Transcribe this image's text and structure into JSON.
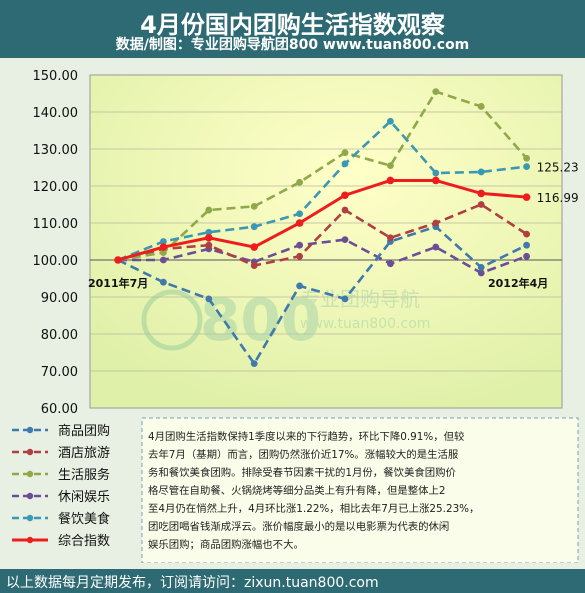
{
  "header": {
    "title": "4月份国内团购生活指数观察",
    "source": "数据/制图：专业团购导航团800    www.tuan800.com"
  },
  "watermark": {
    "logo_text": "800",
    "cn_text": "专业团购导航",
    "url_text": "www.tuan800.com"
  },
  "note": {
    "lines": [
      "4月团购生活指数保持1季度以来的下行趋势，环比下降0.91%，但较",
      "去年7月（基期）而言，团购仍然涨价近17%。涨幅较大的是生活服",
      "务和餐饮美食团购。排除受春节因素干扰的1月份，餐饮美食团购价",
      "格尽管在自助餐、火锅烧烤等细分品类上有升有降，但是整体上2",
      "至4月仍在悄然上升，4月环比涨1.22%，相比去年7月已上涨25.23%，",
      "团吃团喝省钱渐成浮云。涨价幅度最小的是以电影票为代表的休闲",
      "娱乐团购；商品团购涨幅也不大。"
    ]
  },
  "footer": {
    "text": "以上数据每月定期发布，订阅请访问：zixun.tuan800.com"
  },
  "chart_data": {
    "type": "line",
    "title": "4月份国内团购生活指数观察",
    "ylim": [
      60,
      150
    ],
    "yticks": [
      "150.00",
      "140.00",
      "130.00",
      "120.00",
      "110.00",
      "100.00",
      "90.00",
      "80.00",
      "70.00",
      "60.00"
    ],
    "x_start_label": "2011年7月",
    "x_end_label": "2012年4月",
    "grid": "horizontal",
    "legend_position": "bottom-left",
    "series": [
      {
        "name": "商品团购",
        "color": "#3f79ad",
        "style": "dashed",
        "values": [
          100.0,
          94.0,
          89.5,
          72.0,
          93.0,
          89.5,
          105.0,
          109.0,
          98.0,
          104.0
        ]
      },
      {
        "name": "酒店旅游",
        "color": "#b04040",
        "style": "dashed",
        "values": [
          100.0,
          103.0,
          104.0,
          98.5,
          101.0,
          113.5,
          106.0,
          110.0,
          115.0,
          107.0
        ]
      },
      {
        "name": "生活服务",
        "color": "#8fa84a",
        "style": "dashed",
        "values": [
          100.0,
          102.0,
          113.5,
          114.5,
          121.0,
          129.0,
          125.5,
          145.5,
          141.5,
          127.5
        ]
      },
      {
        "name": "休闲娱乐",
        "color": "#6b4e96",
        "style": "dashed",
        "values": [
          100.0,
          100.0,
          103.0,
          99.5,
          104.0,
          105.5,
          99.0,
          103.5,
          96.5,
          101.0
        ]
      },
      {
        "name": "餐饮美食",
        "color": "#3b98b4",
        "style": "dashed",
        "values": [
          100.0,
          105.0,
          107.5,
          109.0,
          112.5,
          126.0,
          137.5,
          123.5,
          123.8,
          125.23
        ]
      },
      {
        "name": "综合指数",
        "color": "#ee1c1c",
        "style": "solid",
        "values": [
          100.0,
          103.5,
          106.0,
          103.5,
          110.0,
          117.5,
          121.5,
          121.5,
          118.0,
          116.99
        ]
      }
    ],
    "end_labels": [
      {
        "series": "餐饮美食",
        "text": "125.23"
      },
      {
        "series": "综合指数",
        "text": "116.99"
      }
    ]
  }
}
